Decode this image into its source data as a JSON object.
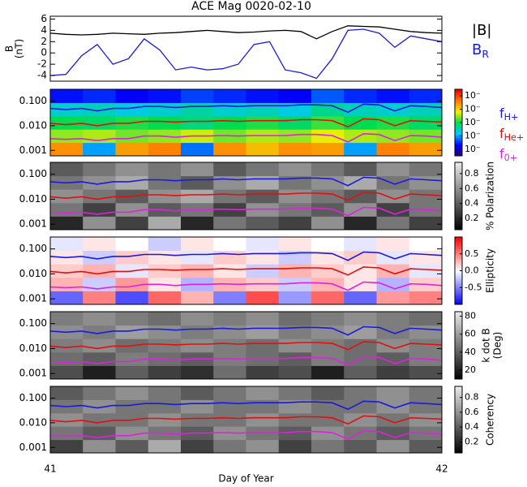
{
  "chart_data": [
    {
      "type": "line",
      "title": "ACE Mag 0020-02-10",
      "ylabel": "B",
      "yunit": "(nT)",
      "xlim": [
        41,
        42
      ],
      "ylim": [
        -5,
        6.5
      ],
      "yticks": [
        -4,
        -2,
        0,
        2,
        4,
        6
      ],
      "x": [
        41,
        41.04,
        41.08,
        41.12,
        41.16,
        41.2,
        41.24,
        41.28,
        41.32,
        41.36,
        41.4,
        41.44,
        41.48,
        41.52,
        41.56,
        41.6,
        41.64,
        41.68,
        41.72,
        41.76,
        41.8,
        41.84,
        41.88,
        41.92,
        41.96,
        42
      ],
      "series": [
        {
          "name": "|B|",
          "color": "#000000",
          "values": [
            3.5,
            3.3,
            3.2,
            3.3,
            3.5,
            3.4,
            3.3,
            3.5,
            3.6,
            3.8,
            4.0,
            3.8,
            3.6,
            3.7,
            3.9,
            4.0,
            3.8,
            2.5,
            3.8,
            4.8,
            4.7,
            4.6,
            4.2,
            3.8,
            3.6,
            3.5
          ]
        },
        {
          "name": "B",
          "name_sub": "R",
          "color": "#1a1adc",
          "values": [
            -4,
            -3.8,
            -0.5,
            1.5,
            -2,
            -1,
            2.5,
            0.5,
            -3,
            -2.5,
            -3,
            -2.8,
            -2,
            1.5,
            2,
            -3,
            -3.5,
            -4.5,
            -1,
            4,
            4.2,
            3.5,
            1,
            3,
            2.5,
            2
          ]
        }
      ]
    },
    {
      "type": "spectrogram",
      "colormap": "rainbow",
      "xlim": [
        41,
        42
      ],
      "ylim": [
        0.0006,
        0.3
      ],
      "yticks": [
        {
          "value": 0.1,
          "label": "0.100"
        },
        {
          "value": 0.01,
          "label": "0.010"
        },
        {
          "value": 0.001,
          "label": "0.001"
        }
      ],
      "zlim": [
        -7.5,
        -2.5
      ],
      "zticks": [
        {
          "value": -7,
          "label": "10⁻"
        },
        {
          "value": -6,
          "label": "10⁻"
        },
        {
          "value": -5,
          "label": "10⁻"
        },
        {
          "value": -4,
          "label": "10⁻"
        },
        {
          "value": -3,
          "label": "10⁻"
        }
      ],
      "z": [
        [
          -3.5,
          -6,
          -3.6,
          -3.4,
          -6.2,
          -3.5,
          -3.8,
          -3.5,
          -3.6,
          -6,
          -3.4,
          -3.6
        ],
        [
          -4.5,
          -4.4,
          -4.6,
          -4.5,
          -4.3,
          -4.6,
          -4.4,
          -4.5,
          -4.2,
          -4.4,
          -4.5,
          -4.6
        ],
        [
          -5.0,
          -5.1,
          -4.9,
          -5.0,
          -5.2,
          -5.0,
          -4.9,
          -5.1,
          -4.8,
          -5.0,
          -4.9,
          -5.1
        ],
        [
          -5.6,
          -5.5,
          -5.7,
          -5.6,
          -5.4,
          -5.6,
          -5.5,
          -5.7,
          -5.3,
          -5.5,
          -5.6,
          -5.5
        ],
        [
          -6.6,
          -6.5,
          -6.7,
          -6.6,
          -6.4,
          -6.5,
          -6.6,
          -6.7,
          -6.3,
          -6.5,
          -6.6,
          -6.5
        ]
      ],
      "series": [
        {
          "name": "f",
          "name_sub": "H+",
          "color": "#1a1adc",
          "values": [
            0.05,
            0.045,
            0.05,
            0.04,
            0.05,
            0.05,
            0.06,
            0.06,
            0.055,
            0.06,
            0.06,
            0.065,
            0.06,
            0.065,
            0.065,
            0.065,
            0.07,
            0.07,
            0.065,
            0.035,
            0.075,
            0.07,
            0.04,
            0.065,
            0.06,
            0.055
          ]
        },
        {
          "name": "f",
          "name_sub": "He+",
          "color": "#e01010",
          "values": [
            0.0125,
            0.011,
            0.0125,
            0.01,
            0.0125,
            0.0125,
            0.015,
            0.015,
            0.014,
            0.015,
            0.015,
            0.016,
            0.015,
            0.016,
            0.016,
            0.016,
            0.0175,
            0.0175,
            0.016,
            0.009,
            0.019,
            0.0175,
            0.01,
            0.016,
            0.015,
            0.014
          ]
        },
        {
          "name": "f",
          "name_sub": "0+",
          "color": "#e020e0",
          "values": [
            0.003,
            0.0028,
            0.003,
            0.0025,
            0.003,
            0.003,
            0.0038,
            0.0038,
            0.0034,
            0.0038,
            0.0038,
            0.004,
            0.0038,
            0.004,
            0.004,
            0.004,
            0.0044,
            0.0044,
            0.004,
            0.0022,
            0.0047,
            0.0044,
            0.0025,
            0.004,
            0.0038,
            0.0034
          ]
        }
      ]
    },
    {
      "type": "spectrogram",
      "colormap": "gray",
      "zlabel": "% Polarization",
      "zlim": [
        0.05,
        0.95
      ],
      "zticks": [
        0.2,
        0.4,
        0.6,
        0.8
      ],
      "z": [
        [
          0.2,
          0.6,
          0.3,
          0.7,
          0.2,
          0.5,
          0.4,
          0.3,
          0.6,
          0.2,
          0.5,
          0.3
        ],
        [
          0.5,
          0.3,
          0.6,
          0.4,
          0.5,
          0.3,
          0.6,
          0.5,
          0.4,
          0.6,
          0.3,
          0.5
        ],
        [
          0.6,
          0.5,
          0.4,
          0.6,
          0.7,
          0.5,
          0.4,
          0.6,
          0.5,
          0.4,
          0.6,
          0.5
        ],
        [
          0.5,
          0.6,
          0.7,
          0.5,
          0.4,
          0.6,
          0.7,
          0.5,
          0.6,
          0.7,
          0.5,
          0.6
        ],
        [
          0.4,
          0.5,
          0.6,
          0.5,
          0.6,
          0.4,
          0.5,
          0.6,
          0.5,
          0.4,
          0.6,
          0.5
        ]
      ]
    },
    {
      "type": "spectrogram",
      "colormap": "bwr",
      "zlabel": "Ellipticity",
      "zlim": [
        -1,
        1
      ],
      "zticks": [
        0.5,
        {
          "value": 0,
          "label": "0.0"
        },
        -0.5
      ],
      "z": [
        [
          -0.6,
          0.5,
          -0.7,
          0.6,
          0.3,
          -0.5,
          0.7,
          -0.4,
          0.6,
          -0.6,
          0.4,
          0.5
        ],
        [
          0.3,
          -0.2,
          0.4,
          0.1,
          -0.3,
          0.3,
          0.2,
          -0.2,
          0.3,
          0.1,
          -0.3,
          0.2
        ],
        [
          0.2,
          0.3,
          -0.1,
          0.2,
          0.3,
          0.1,
          -0.2,
          0.3,
          0.2,
          0.1,
          0.3,
          -0.1
        ],
        [
          0.1,
          -0.2,
          0.2,
          0.1,
          -0.1,
          0.2,
          0.1,
          -0.2,
          0.1,
          0.2,
          -0.1,
          0.1
        ],
        [
          -0.1,
          0.1,
          0.0,
          -0.2,
          0.1,
          0.0,
          -0.1,
          0.1,
          0.0,
          -0.1,
          0.1,
          0.0
        ]
      ]
    },
    {
      "type": "spectrogram",
      "colormap": "gray",
      "zlabel": "k dot B",
      "zunit": "(Deg)",
      "zlim": [
        10,
        85
      ],
      "zticks": [
        20,
        40,
        60,
        80
      ],
      "z": [
        [
          35,
          20,
          40,
          30,
          25,
          45,
          30,
          35,
          20,
          40,
          30,
          35
        ],
        [
          45,
          40,
          50,
          45,
          40,
          50,
          45,
          40,
          50,
          45,
          40,
          50
        ],
        [
          50,
          55,
          45,
          50,
          55,
          50,
          45,
          55,
          50,
          45,
          55,
          50
        ],
        [
          55,
          50,
          60,
          55,
          50,
          55,
          60,
          50,
          55,
          60,
          50,
          55
        ],
        [
          50,
          55,
          50,
          45,
          55,
          50,
          55,
          45,
          50,
          55,
          50,
          45
        ]
      ]
    },
    {
      "type": "spectrogram",
      "colormap": "gray",
      "zlabel": "Coherency",
      "zlim": [
        0.05,
        0.95
      ],
      "zticks": [
        0.2,
        0.4,
        0.6,
        0.8
      ],
      "xticks": [
        41,
        42
      ],
      "xlabel": "Day of Year",
      "z": [
        [
          0.3,
          0.6,
          0.4,
          0.7,
          0.3,
          0.5,
          0.6,
          0.3,
          0.5,
          0.4,
          0.6,
          0.4
        ],
        [
          0.5,
          0.4,
          0.6,
          0.5,
          0.4,
          0.6,
          0.5,
          0.4,
          0.6,
          0.5,
          0.4,
          0.5
        ],
        [
          0.6,
          0.5,
          0.5,
          0.6,
          0.5,
          0.5,
          0.6,
          0.5,
          0.5,
          0.6,
          0.5,
          0.6
        ],
        [
          0.5,
          0.6,
          0.5,
          0.5,
          0.6,
          0.5,
          0.5,
          0.6,
          0.5,
          0.5,
          0.6,
          0.5
        ],
        [
          0.4,
          0.5,
          0.6,
          0.5,
          0.4,
          0.5,
          0.6,
          0.5,
          0.4,
          0.5,
          0.6,
          0.5
        ]
      ]
    }
  ]
}
